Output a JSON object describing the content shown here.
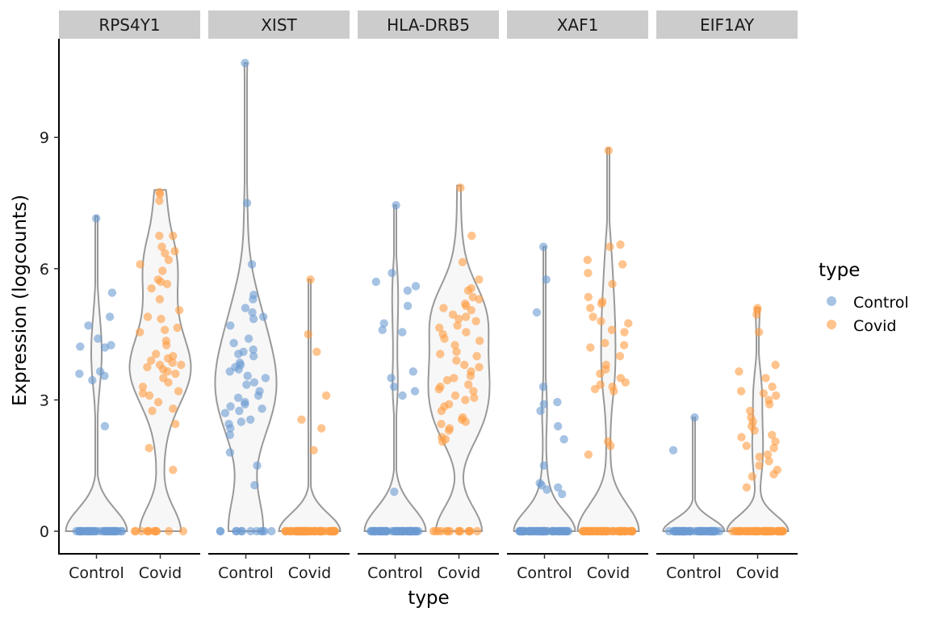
{
  "chart_data": {
    "type": "violin",
    "ylabel": "Expression (logcounts)",
    "xlabel": "type",
    "yticks": [
      0,
      3,
      6,
      9
    ],
    "ylim": [
      -0.5,
      11.2
    ],
    "categories": [
      "Control",
      "Covid"
    ],
    "legend": {
      "title": "type",
      "position": "right",
      "entries": [
        {
          "label": "Control",
          "color": "#6b9bd2"
        },
        {
          "label": "Covid",
          "color": "#ff9d42"
        }
      ]
    },
    "colors": {
      "Control": "#6b9bd2",
      "Covid": "#ff9d42",
      "violin_outline": "#999999",
      "violin_fill": "#f7f7f7",
      "strip_bg": "#cccccc"
    },
    "panels": [
      {
        "gene": "RPS4Y1",
        "groups": [
          {
            "type": "Control",
            "zeros": 40,
            "max": 7.2,
            "nonzero": [
              7.15,
              5.45,
              4.9,
              4.7,
              4.4,
              4.25,
              4.2,
              4.22,
              3.65,
              3.6,
              3.55,
              3.45,
              2.4
            ]
          },
          {
            "type": "Covid",
            "zeros": 12,
            "max": 7.8,
            "nonzero": [
              7.75,
              7.7,
              7.55,
              6.75,
              6.75,
              6.5,
              6.4,
              6.35,
              6.2,
              6.1,
              5.95,
              5.75,
              5.7,
              5.65,
              5.55,
              5.3,
              5.05,
              4.9,
              4.85,
              4.65,
              4.6,
              4.55,
              4.35,
              4.25,
              4.05,
              4.0,
              3.95,
              3.9,
              3.85,
              3.8,
              3.8,
              3.75,
              3.7,
              3.65,
              3.6,
              3.5,
              3.4,
              3.3,
              3.2,
              3.15,
              3.1,
              2.95,
              2.8,
              2.75,
              2.45,
              1.9,
              1.4
            ]
          }
        ]
      },
      {
        "gene": "XIST",
        "groups": [
          {
            "type": "Control",
            "zeros": 12,
            "max": 10.7,
            "nonzero": [
              10.7,
              7.5,
              6.1,
              5.4,
              5.3,
              5.1,
              5.0,
              4.9,
              4.85,
              4.7,
              4.4,
              4.3,
              4.15,
              4.1,
              4.05,
              4.0,
              3.85,
              3.8,
              3.75,
              3.7,
              3.65,
              3.55,
              3.5,
              3.4,
              3.35,
              3.2,
              3.1,
              3.05,
              2.95,
              2.9,
              2.85,
              2.8,
              2.75,
              2.7,
              2.55,
              2.5,
              2.45,
              2.35,
              2.2,
              1.8,
              1.5,
              1.05
            ]
          },
          {
            "type": "Covid",
            "zeros": 60,
            "max": 5.75,
            "nonzero": [
              5.75,
              4.5,
              4.1,
              3.1,
              2.55,
              2.35,
              1.85
            ]
          }
        ]
      },
      {
        "gene": "HLA-DRB5",
        "groups": [
          {
            "type": "Control",
            "zeros": 55,
            "max": 7.45,
            "nonzero": [
              7.45,
              5.9,
              5.7,
              5.6,
              5.5,
              5.15,
              4.75,
              4.6,
              4.55,
              3.65,
              3.5,
              3.3,
              3.2,
              3.1,
              0.9
            ]
          },
          {
            "type": "Covid",
            "zeros": 14,
            "max": 7.9,
            "nonzero": [
              7.85,
              6.75,
              6.15,
              5.75,
              5.55,
              5.5,
              5.35,
              5.3,
              5.2,
              5.15,
              5.1,
              5.05,
              4.95,
              4.9,
              4.85,
              4.8,
              4.7,
              4.65,
              4.55,
              4.5,
              4.4,
              4.35,
              4.25,
              4.1,
              4.05,
              4.0,
              3.9,
              3.8,
              3.75,
              3.65,
              3.55,
              3.5,
              3.45,
              3.35,
              3.3,
              3.25,
              3.2,
              3.1,
              3.05,
              3.0,
              2.9,
              2.85,
              2.75,
              2.6,
              2.55,
              2.5,
              2.45,
              2.35,
              2.3,
              2.15,
              2.1,
              2.05
            ]
          }
        ]
      },
      {
        "gene": "XAF1",
        "groups": [
          {
            "type": "Control",
            "zeros": 55,
            "max": 6.5,
            "nonzero": [
              6.5,
              5.75,
              5.0,
              3.3,
              2.95,
              2.9,
              2.75,
              2.4,
              2.1,
              1.5,
              1.1,
              1.05,
              1.0,
              0.95,
              0.85
            ]
          },
          {
            "type": "Covid",
            "zeros": 55,
            "max": 8.75,
            "nonzero": [
              8.7,
              6.55,
              6.5,
              6.2,
              6.1,
              5.9,
              5.65,
              5.35,
              5.25,
              5.2,
              5.1,
              4.9,
              4.8,
              4.75,
              4.6,
              4.55,
              4.3,
              4.25,
              4.2,
              4.0,
              3.8,
              3.7,
              3.6,
              3.5,
              3.4,
              3.35,
              3.3,
              3.25,
              3.2,
              2.05,
              1.95,
              1.75
            ]
          }
        ]
      },
      {
        "gene": "EIF1AY",
        "groups": [
          {
            "type": "Control",
            "zeros": 55,
            "max": 2.6,
            "nonzero": [
              2.6,
              1.85
            ]
          },
          {
            "type": "Covid",
            "zeros": 55,
            "max": 5.1,
            "nonzero": [
              5.1,
              5.05,
              4.95,
              4.55,
              3.8,
              3.65,
              3.5,
              3.3,
              3.2,
              3.15,
              3.1,
              3.0,
              2.9,
              2.75,
              2.6,
              2.5,
              2.4,
              2.3,
              2.2,
              2.15,
              2.05,
              1.95,
              1.9,
              1.75,
              1.7,
              1.6,
              1.5,
              1.4,
              1.3,
              1.25,
              1.0
            ]
          }
        ]
      }
    ]
  }
}
